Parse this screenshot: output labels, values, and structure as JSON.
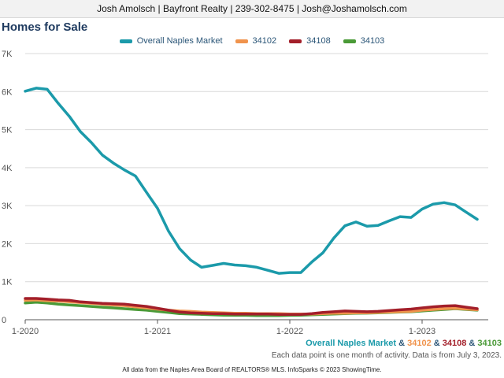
{
  "header": {
    "contact_line": "Josh Amolsch | Bayfront Realty | 239-302-8475 | Josh@Joshamolsch.com"
  },
  "title": "Homes for Sale",
  "chart_data": {
    "type": "line",
    "title": "Homes for Sale",
    "xlabel": "",
    "ylabel": "",
    "ylim": [
      0,
      7000
    ],
    "y_ticks": [
      0,
      1000,
      2000,
      3000,
      4000,
      5000,
      6000,
      7000
    ],
    "y_tick_labels": [
      "0",
      "1K",
      "2K",
      "3K",
      "4K",
      "5K",
      "6K",
      "7K"
    ],
    "x_tick_labels": [
      "1-2020",
      "1-2021",
      "1-2022",
      "1-2023"
    ],
    "x_tick_months": [
      0,
      12,
      24,
      36
    ],
    "x_months": [
      0,
      1,
      2,
      3,
      4,
      5,
      6,
      7,
      8,
      9,
      10,
      11,
      12,
      13,
      14,
      15,
      16,
      17,
      18,
      19,
      20,
      21,
      22,
      23,
      24,
      25,
      26,
      27,
      28,
      29,
      30,
      31,
      32,
      33,
      34,
      35,
      36,
      37,
      38,
      39,
      40,
      41
    ],
    "legend_position": "top",
    "grid": true,
    "series": [
      {
        "name": "Overall Naples Market",
        "color": "#1b9aaa",
        "values": [
          6010,
          6090,
          6060,
          5690,
          5350,
          4950,
          4660,
          4330,
          4120,
          3940,
          3780,
          3350,
          2930,
          2330,
          1870,
          1570,
          1380,
          1430,
          1480,
          1440,
          1420,
          1380,
          1300,
          1220,
          1240,
          1240,
          1520,
          1760,
          2150,
          2470,
          2570,
          2460,
          2480,
          2600,
          2710,
          2690,
          2910,
          3040,
          3080,
          3020,
          2830,
          2640
        ]
      },
      {
        "name": "34102",
        "color": "#f0934c",
        "values": [
          510,
          520,
          500,
          490,
          470,
          450,
          430,
          410,
          390,
          370,
          340,
          310,
          280,
          250,
          230,
          220,
          200,
          190,
          180,
          170,
          170,
          160,
          160,
          160,
          150,
          150,
          150,
          160,
          170,
          170,
          180,
          180,
          190,
          200,
          210,
          220,
          250,
          270,
          290,
          300,
          280,
          260
        ]
      },
      {
        "name": "34108",
        "color": "#a31f2a",
        "values": [
          560,
          560,
          540,
          520,
          510,
          470,
          450,
          430,
          420,
          410,
          380,
          350,
          300,
          250,
          200,
          180,
          170,
          160,
          160,
          150,
          150,
          150,
          150,
          140,
          140,
          140,
          160,
          190,
          210,
          230,
          220,
          210,
          220,
          240,
          260,
          280,
          310,
          340,
          360,
          370,
          330,
          290
        ]
      },
      {
        "name": "34103",
        "color": "#4a9a37",
        "values": [
          440,
          460,
          440,
          410,
          390,
          370,
          350,
          330,
          310,
          290,
          270,
          250,
          220,
          190,
          160,
          150,
          140,
          130,
          120,
          115,
          115,
          110,
          110,
          110,
          115,
          120,
          130,
          140,
          150,
          160,
          170,
          175,
          180,
          190,
          200,
          210,
          230,
          250,
          270,
          290,
          270,
          250
        ]
      }
    ]
  },
  "caption": {
    "overall": "Overall Naples Market",
    "sep1": " & ",
    "z1": "34102",
    "sep2": " & ",
    "z2": "34108",
    "sep3": " & ",
    "z3": "34103"
  },
  "note": "Each data point is one month of activity. Data is from July 3, 2023.",
  "footer": "All data from the Naples Area Board of REALTORS® MLS. InfoSparks © 2023 ShowingTime."
}
